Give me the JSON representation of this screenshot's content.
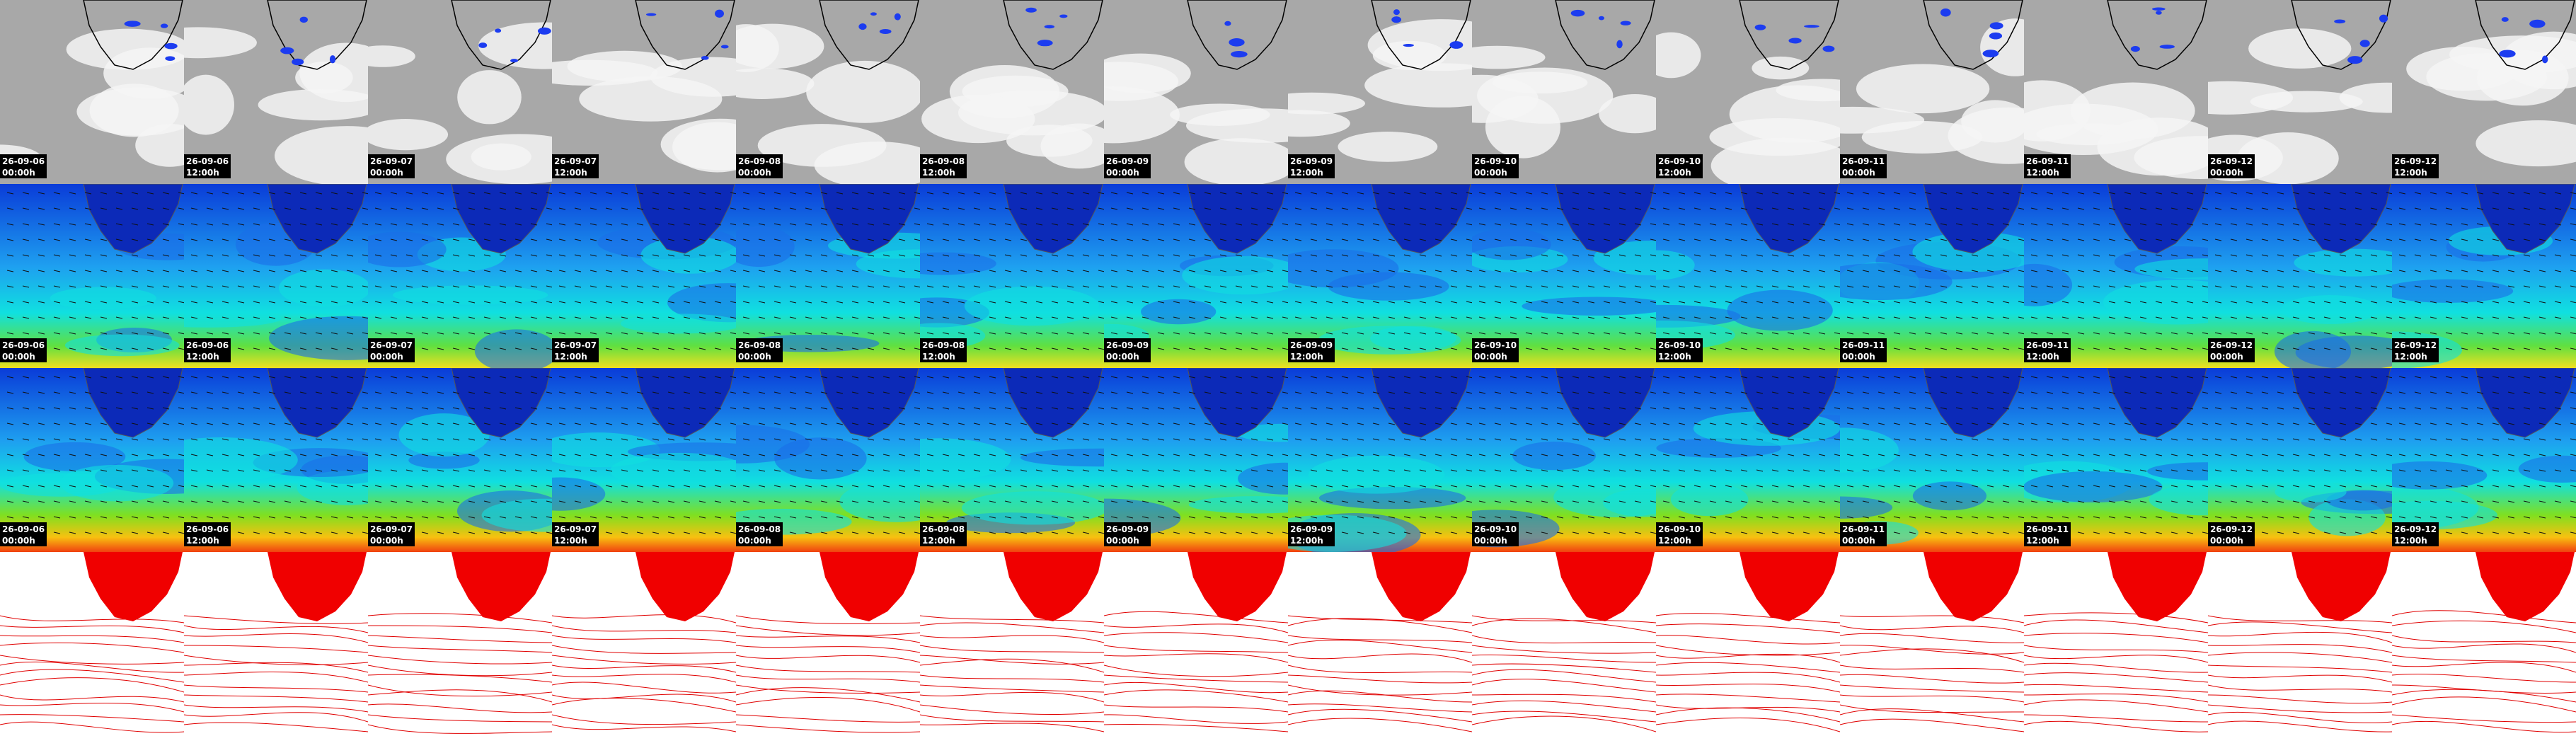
{
  "panels": {
    "columns": [
      {
        "date": "26-09-06",
        "time": "00:00h"
      },
      {
        "date": "26-09-06",
        "time": "12:00h"
      },
      {
        "date": "26-09-07",
        "time": "00:00h"
      },
      {
        "date": "26-09-07",
        "time": "12:00h"
      },
      {
        "date": "26-09-08",
        "time": "00:00h"
      },
      {
        "date": "26-09-08",
        "time": "12:00h"
      },
      {
        "date": "26-09-09",
        "time": "00:00h"
      },
      {
        "date": "26-09-09",
        "time": "12:00h"
      },
      {
        "date": "26-09-10",
        "time": "00:00h"
      },
      {
        "date": "26-09-10",
        "time": "12:00h"
      },
      {
        "date": "26-09-11",
        "time": "00:00h"
      },
      {
        "date": "26-09-11",
        "time": "12:00h"
      },
      {
        "date": "26-09-12",
        "time": "00:00h"
      },
      {
        "date": "26-09-12",
        "time": "12:00h"
      }
    ]
  }
}
